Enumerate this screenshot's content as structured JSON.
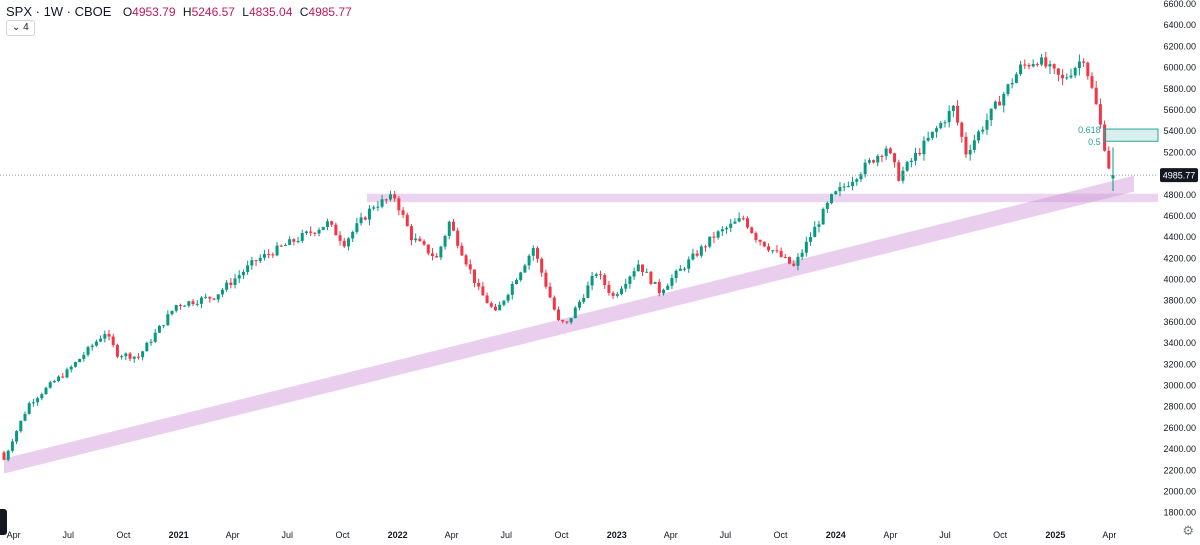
{
  "header": {
    "symbol_line": "SPX · 1W · CBOE",
    "ohlc": [
      {
        "label": "O",
        "value": "4953.79"
      },
      {
        "label": "H",
        "value": "5246.57"
      },
      {
        "label": "L",
        "value": "4835.04"
      },
      {
        "label": "C",
        "value": "4985.77"
      }
    ],
    "indicator_badge": "4"
  },
  "colors": {
    "up": "#089981",
    "down": "#f23645",
    "zone": "#ce93d8",
    "fib": "#26a69a",
    "price_tag": "#131722",
    "axis_text": "#131722"
  },
  "icons": {
    "settings": "gear-icon",
    "chevron": "chevron-down-icon"
  },
  "chart_data": {
    "type": "candlestick",
    "symbol": "SPX",
    "interval": "1W",
    "exchange": "CBOE",
    "ylim": [
      1750,
      6600
    ],
    "y_ticks": [
      "6600.00",
      "6400.00",
      "6200.00",
      "6000.00",
      "5800.00",
      "5600.00",
      "5400.00",
      "5200.00",
      "5000.00",
      "4800.00",
      "4600.00",
      "4400.00",
      "4200.00",
      "4000.00",
      "3800.00",
      "3600.00",
      "3400.00",
      "3200.00",
      "3000.00",
      "2800.00",
      "2600.00",
      "2400.00",
      "2200.00",
      "2000.00",
      "1800.00"
    ],
    "x_range": [
      "2020-03-16",
      "2025-05-12"
    ],
    "x_ticks": [
      {
        "date": "2020-04-01",
        "label": "Apr",
        "bold": false
      },
      {
        "date": "2020-07-01",
        "label": "Jul",
        "bold": false
      },
      {
        "date": "2020-10-01",
        "label": "Oct",
        "bold": false
      },
      {
        "date": "2021-01-01",
        "label": "2021",
        "bold": true
      },
      {
        "date": "2021-04-01",
        "label": "Apr",
        "bold": false
      },
      {
        "date": "2021-07-01",
        "label": "Jul",
        "bold": false
      },
      {
        "date": "2021-10-01",
        "label": "Oct",
        "bold": false
      },
      {
        "date": "2022-01-01",
        "label": "2022",
        "bold": true
      },
      {
        "date": "2022-04-01",
        "label": "Apr",
        "bold": false
      },
      {
        "date": "2022-07-01",
        "label": "Jul",
        "bold": false
      },
      {
        "date": "2022-10-01",
        "label": "Oct",
        "bold": false
      },
      {
        "date": "2023-01-01",
        "label": "2023",
        "bold": true
      },
      {
        "date": "2023-04-01",
        "label": "Apr",
        "bold": false
      },
      {
        "date": "2023-07-01",
        "label": "Jul",
        "bold": false
      },
      {
        "date": "2023-10-01",
        "label": "Oct",
        "bold": false
      },
      {
        "date": "2024-01-01",
        "label": "2024",
        "bold": true
      },
      {
        "date": "2024-04-01",
        "label": "Apr",
        "bold": false
      },
      {
        "date": "2024-07-01",
        "label": "Jul",
        "bold": false
      },
      {
        "date": "2024-10-01",
        "label": "Oct",
        "bold": false
      },
      {
        "date": "2025-01-01",
        "label": "2025",
        "bold": true
      },
      {
        "date": "2025-04-01",
        "label": "Apr",
        "bold": false
      }
    ],
    "closes": [
      {
        "date": "2020-03-16",
        "close": 2300
      },
      {
        "date": "2020-03-30",
        "close": 2490
      },
      {
        "date": "2020-04-27",
        "close": 2830
      },
      {
        "date": "2020-06-08",
        "close": 3040
      },
      {
        "date": "2020-06-29",
        "close": 3130
      },
      {
        "date": "2020-08-31",
        "close": 3500
      },
      {
        "date": "2020-09-21",
        "close": 3300
      },
      {
        "date": "2020-10-26",
        "close": 3270
      },
      {
        "date": "2020-12-28",
        "close": 3760
      },
      {
        "date": "2021-03-01",
        "close": 3840
      },
      {
        "date": "2021-05-10",
        "close": 4180
      },
      {
        "date": "2021-09-06",
        "close": 4530
      },
      {
        "date": "2021-10-04",
        "close": 4350
      },
      {
        "date": "2021-11-22",
        "close": 4700
      },
      {
        "date": "2021-12-27",
        "close": 4780
      },
      {
        "date": "2022-01-24",
        "close": 4400
      },
      {
        "date": "2022-03-07",
        "close": 4200
      },
      {
        "date": "2022-03-28",
        "close": 4540
      },
      {
        "date": "2022-05-16",
        "close": 3900
      },
      {
        "date": "2022-06-13",
        "close": 3680
      },
      {
        "date": "2022-08-15",
        "close": 4300
      },
      {
        "date": "2022-09-26",
        "close": 3600
      },
      {
        "date": "2022-10-10",
        "close": 3580
      },
      {
        "date": "2022-11-28",
        "close": 4070
      },
      {
        "date": "2022-12-26",
        "close": 3840
      },
      {
        "date": "2023-02-06",
        "close": 4150
      },
      {
        "date": "2023-03-13",
        "close": 3890
      },
      {
        "date": "2023-06-12",
        "close": 4410
      },
      {
        "date": "2023-07-31",
        "close": 4580
      },
      {
        "date": "2023-08-21",
        "close": 4400
      },
      {
        "date": "2023-10-23",
        "close": 4120
      },
      {
        "date": "2023-12-25",
        "close": 4770
      },
      {
        "date": "2024-03-25",
        "close": 5250
      },
      {
        "date": "2024-04-15",
        "close": 4970
      },
      {
        "date": "2024-07-15",
        "close": 5620
      },
      {
        "date": "2024-08-05",
        "close": 5200
      },
      {
        "date": "2024-11-04",
        "close": 6000
      },
      {
        "date": "2024-12-02",
        "close": 6080
      },
      {
        "date": "2025-01-13",
        "close": 5880
      },
      {
        "date": "2025-02-17",
        "close": 6100
      },
      {
        "date": "2025-03-10",
        "close": 5640
      },
      {
        "date": "2025-03-31",
        "close": 5070
      },
      {
        "date": "2025-04-07",
        "close": 4985.77
      }
    ],
    "last_bar": {
      "open": 4953.79,
      "high": 5246.57,
      "low": 4835.04,
      "close": 4985.77
    },
    "last_price_label": "4985.77",
    "support_zone": {
      "from": 4730,
      "to": 4810
    },
    "trend_channel": {
      "start": {
        "date": "2020-03-16",
        "low": 2170,
        "high": 2310
      },
      "end": {
        "date": "2025-05-12",
        "low": 4830,
        "high": 4980
      }
    },
    "fib_levels": [
      {
        "label": "0.618",
        "value": 5420,
        "date_from": "2025-03-24"
      },
      {
        "label": "0.5",
        "value": 5305,
        "date_from": "2025-03-24"
      }
    ]
  }
}
